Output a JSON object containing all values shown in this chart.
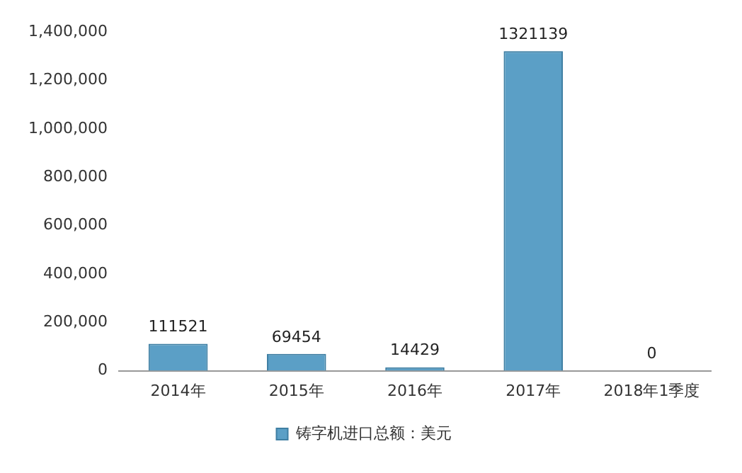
{
  "chart_data": {
    "type": "bar",
    "categories": [
      "2014年",
      "2015年",
      "2016年",
      "2017年",
      "2018年1季度"
    ],
    "series": [
      {
        "name": "铸字机进口总额：美元",
        "color": "#5b9fc6",
        "values": [
          111521,
          69454,
          14429,
          1321139,
          0
        ]
      }
    ],
    "ylim": [
      0,
      1400000
    ],
    "yticks": [
      0,
      {
        "value": 200000,
        "label": "200,000"
      },
      {
        "value": 400000,
        "label": "400,000"
      },
      {
        "value": 600000,
        "label": "600,000"
      },
      {
        "value": 800000,
        "label": "800,000"
      },
      {
        "value": 1000000,
        "label": "1,000,000"
      },
      {
        "value": 1200000,
        "label": "1,200,000"
      },
      {
        "value": 1400000,
        "label": "1,400,000"
      }
    ],
    "grid": false,
    "legend": "bottom",
    "data_labels": true
  }
}
